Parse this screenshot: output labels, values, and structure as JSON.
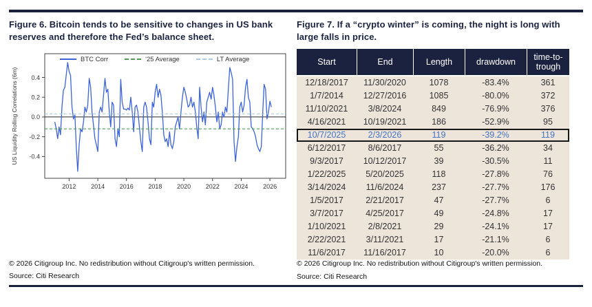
{
  "colors": {
    "navy": "#1A2240",
    "table_header_bg": "#1A2240",
    "table_body_bg": "#EDE4DA",
    "highlight_text": "#4472C4",
    "highlight_border": "#161616",
    "btc_line_blue": "#3C62DB",
    "avg25_green": "#4E9B57",
    "lt_avg_blue": "#A9CBE9"
  },
  "figure6": {
    "title": "Figure 6. Bitcoin tends to be sensitive to changes in US bank reserves and therefore the Fed’s balance sheet.",
    "footer": {
      "copyright": "© 2026 Citigroup Inc. No redistribution without Citigroup's written permission.",
      "source": "Source: Citi Research"
    }
  },
  "figure7": {
    "title": "Figure 7. If a “crypto winter” is coming, the night is long with large falls in price.",
    "footer": {
      "copyright": "© 2026 Citigroup Inc. No redistribution without Citigroup's written permission.",
      "source": "Source: Citi Research"
    }
  },
  "chart_data": [
    {
      "type": "line",
      "title": "Figure 6. Bitcoin tends to be sensitive to changes in US bank reserves and therefore the Fed’s balance sheet.",
      "xlabel": "",
      "ylabel": "US Liquidity Rolling Correlations (6m)",
      "xlim": [
        2010.3,
        2027.1
      ],
      "ylim": [
        -0.62,
        0.64
      ],
      "x_ticks": [
        2012,
        2014,
        2016,
        2018,
        2020,
        2022,
        2024,
        2026
      ],
      "y_ticks": [
        0.4,
        0.2,
        0.0,
        -0.2,
        -0.4
      ],
      "grid": false,
      "legend_position": "top-inside",
      "zero_line": 0.0,
      "series": [
        {
          "name": "BTC Corr",
          "kind": "line",
          "style": "solid",
          "color": "#3C62DB",
          "x_start": 2011.0,
          "x_step": 0.1,
          "values": [
            -0.05,
            -0.12,
            -0.22,
            -0.1,
            -0.18,
            0.1,
            0.27,
            0.3,
            0.43,
            0.55,
            0.46,
            0.42,
            0.1,
            -0.02,
            0.02,
            -0.3,
            -0.55,
            -0.28,
            -0.12,
            -0.15,
            -0.05,
            0.1,
            0.05,
            0.12,
            0.39,
            0.3,
            0.05,
            -0.08,
            -0.22,
            -0.28,
            -0.35,
            0.05,
            0.1,
            0.05,
            0.22,
            0.39,
            0.25,
            0.28,
            0.05,
            -0.1,
            0.15,
            0.12,
            -0.22,
            -0.3,
            -0.12,
            -0.2,
            0.38,
            0.15,
            0.08,
            0.08,
            0.07,
            0.09,
            0.07,
            0.2,
            0.05,
            -0.15,
            0.1,
            0.12,
            0.05,
            -0.1,
            -0.25,
            -0.35,
            0.1,
            0.15,
            0.1,
            -0.05,
            -0.22,
            -0.28,
            0.15,
            0.1,
            0.25,
            0.33,
            0.2,
            0.28,
            0.22,
            0.05,
            -0.18,
            -0.25,
            -0.22,
            -0.3,
            -0.15,
            -0.28,
            -0.32,
            -0.25,
            -0.1,
            -0.05,
            0.0,
            -0.12,
            0.05,
            0.2,
            0.3,
            0.25,
            0.18,
            0.1,
            0.12,
            0.2,
            0.1,
            0.15,
            0.05,
            -0.1,
            -0.22,
            0.3,
            0.1,
            -0.05,
            0.05,
            -0.08,
            0.15,
            0.2,
            0.25,
            0.18,
            0.3,
            0.22,
            0.1,
            -0.05,
            0.05,
            -0.12,
            -0.08,
            0.05,
            0.0,
            0.1,
            0.05,
            0.28,
            0.5,
            0.45,
            0.38,
            -0.25,
            -0.45,
            -0.3,
            -0.2,
            0.1,
            0.15,
            0.05,
            0.12,
            0.3,
            0.38,
            0.2,
            0.15,
            -0.1,
            -0.12,
            -0.15,
            -0.2,
            -0.28,
            -0.32,
            -0.35,
            -0.3,
            0.05,
            0.33,
            0.28,
            -0.02,
            0.05,
            0.16,
            0.1
          ]
        },
        {
          "name": "'25 Average",
          "kind": "hline",
          "style": "dashed",
          "color": "#4E9B57",
          "value": -0.12
        },
        {
          "name": "LT Average",
          "kind": "hline",
          "style": "dashed",
          "color": "#A9CBE9",
          "value": 0.03
        }
      ]
    },
    {
      "type": "table",
      "title": "Figure 7. If a “crypto winter” is coming, the night is long with large falls in price.",
      "columns": [
        "Start",
        "End",
        "Length",
        "drawdown",
        "time-to-trough"
      ],
      "highlight_row_index": 4,
      "rows": [
        [
          "12/18/2017",
          "11/30/2020",
          "1078",
          "-83.4%",
          "361"
        ],
        [
          "1/7/2014",
          "12/27/2016",
          "1085",
          "-80.0%",
          "372"
        ],
        [
          "11/10/2021",
          "3/8/2024",
          "849",
          "-76.9%",
          "376"
        ],
        [
          "4/16/2021",
          "10/19/2021",
          "186",
          "-52.9%",
          "95"
        ],
        [
          "10/7/2025",
          "2/3/2026",
          "119",
          "-39.2%",
          "119"
        ],
        [
          "6/12/2017",
          "8/6/2017",
          "55",
          "-36.2%",
          "34"
        ],
        [
          "9/3/2017",
          "10/12/2017",
          "39",
          "-30.5%",
          "11"
        ],
        [
          "1/22/2025",
          "5/20/2025",
          "118",
          "-27.8%",
          "76"
        ],
        [
          "3/14/2024",
          "11/6/2024",
          "237",
          "-27.7%",
          "176"
        ],
        [
          "1/5/2017",
          "2/21/2017",
          "47",
          "-27.7%",
          "6"
        ],
        [
          "3/7/2017",
          "4/25/2017",
          "49",
          "-24.8%",
          "17"
        ],
        [
          "1/10/2021",
          "2/8/2021",
          "29",
          "-24.1%",
          "17"
        ],
        [
          "2/22/2021",
          "3/11/2021",
          "17",
          "-21.1%",
          "6"
        ],
        [
          "11/6/2017",
          "11/16/2017",
          "10",
          "-20.0%",
          "6"
        ]
      ]
    }
  ]
}
